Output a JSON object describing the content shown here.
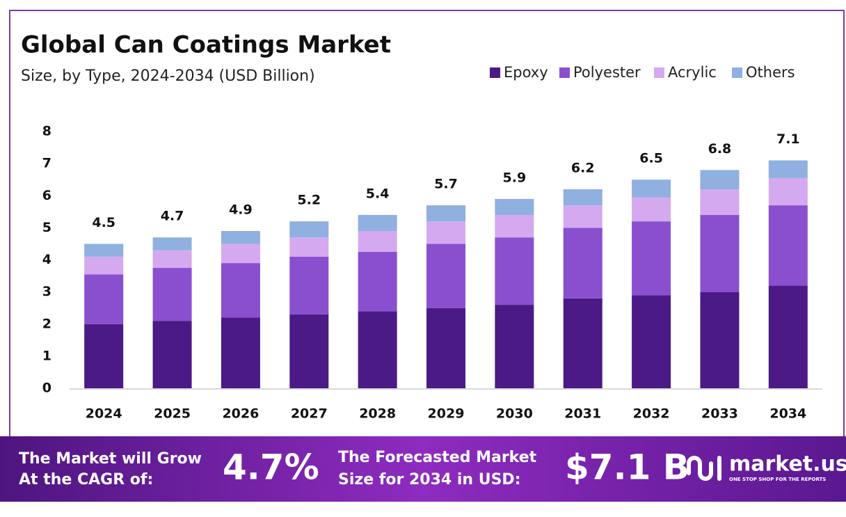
{
  "chart_data": {
    "type": "stacked_bar",
    "title": "Global Can Coatings Market",
    "subtitle": "Size, by Type, 2024-2034 (USD Billion)",
    "categories": [
      "2024",
      "2025",
      "2026",
      "2027",
      "2028",
      "2029",
      "2030",
      "2031",
      "2032",
      "2033",
      "2034"
    ],
    "series": [
      {
        "name": "Epoxy",
        "color": "#4b1a86",
        "values": [
          2.0,
          2.1,
          2.2,
          2.3,
          2.4,
          2.5,
          2.6,
          2.8,
          2.9,
          3.0,
          3.2
        ]
      },
      {
        "name": "Polyester",
        "color": "#8a4fcf",
        "values": [
          1.55,
          1.65,
          1.7,
          1.8,
          1.85,
          2.0,
          2.1,
          2.2,
          2.3,
          2.4,
          2.5
        ]
      },
      {
        "name": "Acrylic",
        "color": "#d4a9f0",
        "values": [
          0.55,
          0.55,
          0.6,
          0.6,
          0.65,
          0.7,
          0.7,
          0.7,
          0.75,
          0.8,
          0.85
        ]
      },
      {
        "name": "Others",
        "color": "#8fb0e0",
        "values": [
          0.4,
          0.4,
          0.4,
          0.5,
          0.5,
          0.5,
          0.5,
          0.5,
          0.55,
          0.6,
          0.55
        ]
      }
    ],
    "totals": [
      4.5,
      4.7,
      4.9,
      5.2,
      5.4,
      5.7,
      5.9,
      6.2,
      6.5,
      6.8,
      7.1
    ],
    "ylim": [
      0,
      8
    ],
    "yticks": [
      0,
      1,
      2,
      3,
      4,
      5,
      6,
      7,
      8
    ],
    "grid": false,
    "legend": "top-right"
  },
  "footer": {
    "cagr_label": [
      "The Market will Grow",
      "At the CAGR of:"
    ],
    "cagr": "4.7%",
    "forecast_label": [
      "The Forecasted Market",
      "Size for 2034 in USD:"
    ],
    "forecast": "$7.1 B",
    "brand": "market.us",
    "tagline": "ONE STOP SHOP FOR THE REPORTS"
  }
}
